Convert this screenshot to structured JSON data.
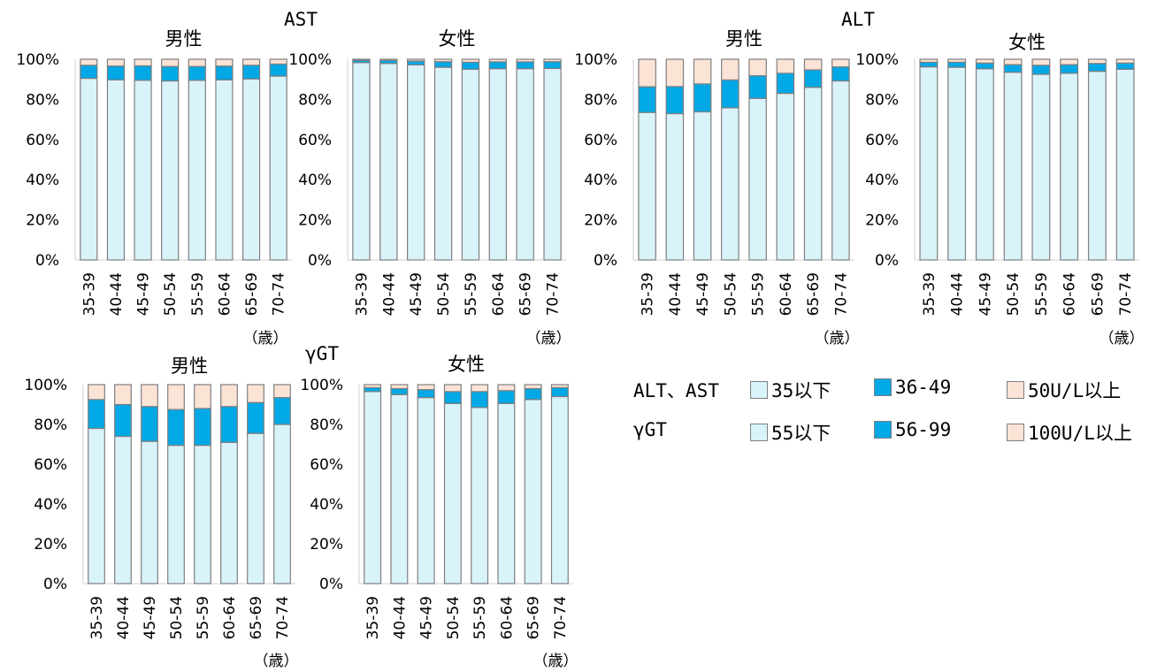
{
  "section_titles": {
    "ast": "AST",
    "alt": "ALT",
    "ggt": "γGT"
  },
  "unit_label": "（歳）",
  "colors": {
    "low": "#d9f3fb",
    "mid": "#00a8e6",
    "high": "#fbe3d6",
    "edge": "#7f7f7f"
  },
  "legend": {
    "row1_label": "ALT、AST",
    "row2_label": "γGT",
    "items": [
      {
        "label": "35以下",
        "color": "#d9f3fb"
      },
      {
        "label": "36-49",
        "color": "#00a8e6"
      },
      {
        "label": "50U/L以上",
        "color": "#fbe3d6"
      },
      {
        "label": "55以下",
        "color": "#d9f3fb"
      },
      {
        "label": "56-99",
        "color": "#00a8e6"
      },
      {
        "label": "100U/L以上",
        "color": "#fbe3d6"
      }
    ]
  },
  "chart_data": [
    {
      "type": "bar",
      "stacked": true,
      "group": "AST",
      "title": "男性",
      "categories": [
        "35-39",
        "40-44",
        "45-49",
        "50-54",
        "55-59",
        "60-64",
        "65-69",
        "70-74"
      ],
      "ylim": [
        0,
        100
      ],
      "yticks": [
        "0%",
        "20%",
        "40%",
        "60%",
        "80%",
        "100%"
      ],
      "series": [
        {
          "name": "35以下",
          "values": [
            90.5,
            89.7,
            89.5,
            89.2,
            89.5,
            89.7,
            90.2,
            91.6
          ]
        },
        {
          "name": "36-49",
          "values": [
            6.5,
            6.9,
            7.2,
            7.2,
            6.9,
            6.9,
            6.8,
            6.0
          ]
        },
        {
          "name": "50U/L以上",
          "values": [
            3.0,
            3.4,
            3.3,
            3.6,
            3.6,
            3.4,
            3.0,
            2.4
          ]
        }
      ]
    },
    {
      "type": "bar",
      "stacked": true,
      "group": "AST",
      "title": "女性",
      "categories": [
        "35-39",
        "40-44",
        "45-49",
        "50-54",
        "55-59",
        "60-64",
        "65-69",
        "70-74"
      ],
      "ylim": [
        0,
        100
      ],
      "yticks": [
        "0%",
        "20%",
        "40%",
        "60%",
        "80%",
        "100%"
      ],
      "series": [
        {
          "name": "35以下",
          "values": [
            98.3,
            97.9,
            97.2,
            96.0,
            95.0,
            95.3,
            95.3,
            95.4
          ]
        },
        {
          "name": "36-49",
          "values": [
            1.2,
            1.5,
            1.9,
            2.8,
            3.5,
            3.4,
            3.4,
            3.4
          ]
        },
        {
          "name": "50U/L以上",
          "values": [
            0.5,
            0.6,
            0.9,
            1.2,
            1.5,
            1.3,
            1.3,
            1.2
          ]
        }
      ]
    },
    {
      "type": "bar",
      "stacked": true,
      "group": "ALT",
      "title": "男性",
      "categories": [
        "35-39",
        "40-44",
        "45-49",
        "50-54",
        "55-59",
        "60-64",
        "65-69",
        "70-74"
      ],
      "ylim": [
        0,
        100
      ],
      "yticks": [
        "0%",
        "20%",
        "40%",
        "60%",
        "80%",
        "100%"
      ],
      "series": [
        {
          "name": "35以下",
          "values": [
            73.5,
            72.9,
            73.8,
            75.8,
            80.5,
            83.0,
            86.0,
            89.2
          ]
        },
        {
          "name": "36-49",
          "values": [
            12.8,
            13.5,
            13.9,
            13.9,
            11.3,
            10.0,
            8.7,
            7.0
          ]
        },
        {
          "name": "50U/L以上",
          "values": [
            13.7,
            13.6,
            12.3,
            10.3,
            8.2,
            7.0,
            5.3,
            3.8
          ]
        }
      ]
    },
    {
      "type": "bar",
      "stacked": true,
      "group": "ALT",
      "title": "女性",
      "categories": [
        "35-39",
        "40-44",
        "45-49",
        "50-54",
        "55-59",
        "60-64",
        "65-69",
        "70-74"
      ],
      "ylim": [
        0,
        100
      ],
      "yticks": [
        "0%",
        "20%",
        "40%",
        "60%",
        "80%",
        "100%"
      ],
      "series": [
        {
          "name": "35以下",
          "values": [
            96.2,
            96.0,
            95.2,
            93.5,
            92.5,
            93.0,
            94.0,
            95.0
          ]
        },
        {
          "name": "36-49",
          "values": [
            2.3,
            2.5,
            2.9,
            3.8,
            4.5,
            4.3,
            3.9,
            3.1
          ]
        },
        {
          "name": "50U/L以上",
          "values": [
            1.5,
            1.5,
            1.9,
            2.7,
            3.0,
            2.7,
            2.1,
            1.9
          ]
        }
      ]
    },
    {
      "type": "bar",
      "stacked": true,
      "group": "γGT",
      "title": "男性",
      "categories": [
        "35-39",
        "40-44",
        "45-49",
        "50-54",
        "55-59",
        "60-64",
        "65-69",
        "70-74"
      ],
      "ylim": [
        0,
        100
      ],
      "yticks": [
        "0%",
        "20%",
        "40%",
        "60%",
        "80%",
        "100%"
      ],
      "series": [
        {
          "name": "55以下",
          "values": [
            78.0,
            74.0,
            71.5,
            69.5,
            69.5,
            71.0,
            75.5,
            80.0
          ]
        },
        {
          "name": "56-99",
          "values": [
            14.5,
            16.0,
            17.5,
            18.0,
            18.5,
            18.0,
            15.5,
            13.5
          ]
        },
        {
          "name": "100U/L以上",
          "values": [
            7.5,
            10.0,
            11.0,
            12.5,
            12.0,
            11.0,
            9.0,
            6.5
          ]
        }
      ]
    },
    {
      "type": "bar",
      "stacked": true,
      "group": "γGT",
      "title": "女性",
      "categories": [
        "35-39",
        "40-44",
        "45-49",
        "50-54",
        "55-59",
        "60-64",
        "65-69",
        "70-74"
      ],
      "ylim": [
        0,
        100
      ],
      "yticks": [
        "0%",
        "20%",
        "40%",
        "60%",
        "80%",
        "100%"
      ],
      "series": [
        {
          "name": "55以下",
          "values": [
            96.5,
            95.0,
            93.5,
            90.5,
            88.5,
            90.5,
            92.5,
            94.0
          ]
        },
        {
          "name": "56-99",
          "values": [
            2.0,
            3.0,
            4.0,
            6.0,
            8.0,
            6.5,
            5.5,
            4.5
          ]
        },
        {
          "name": "100U/L以上",
          "values": [
            1.5,
            2.0,
            2.5,
            3.5,
            3.5,
            3.0,
            2.0,
            1.5
          ]
        }
      ]
    }
  ]
}
